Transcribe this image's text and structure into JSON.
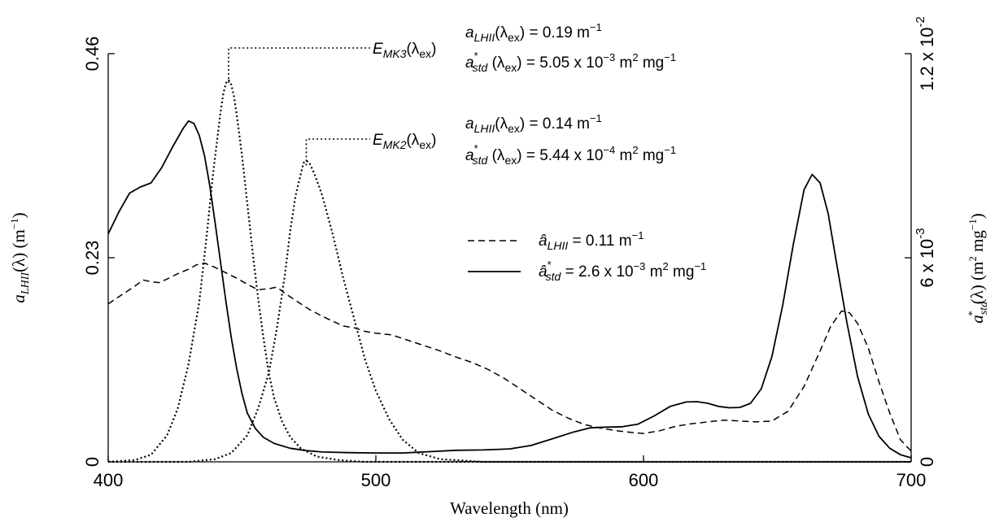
{
  "chart_data": {
    "type": "line",
    "xlabel": "Wavelength (nm)",
    "ylabel_left": "a_LHII(λ) (m⁻¹)",
    "ylabel_right": "a*_std(λ) (m² mg⁻¹)",
    "xlim": [
      400,
      700
    ],
    "ylim_left": [
      0,
      0.46
    ],
    "ylim_right": [
      0,
      0.012
    ],
    "x_ticks": [
      400,
      500,
      600,
      700
    ],
    "x_tick_labels": [
      "400",
      "500",
      "600",
      "700"
    ],
    "y_left_ticks": [
      0,
      0.23,
      0.46
    ],
    "y_left_tick_labels": [
      "0",
      "0.23",
      "0.46"
    ],
    "y_right_ticks": [
      0,
      0.006,
      0.012
    ],
    "y_right_tick_labels": [
      "0",
      "6 x 10",
      "1.2 x 10"
    ],
    "y_right_tick_exponents": [
      "",
      "-3",
      "-2"
    ],
    "grid": false,
    "series": [
      {
        "name": "â_LHII = 0.11 m⁻¹",
        "axis": "left",
        "style": "dashed",
        "points": [
          [
            400,
            0.178
          ],
          [
            405,
            0.188
          ],
          [
            410,
            0.198
          ],
          [
            413,
            0.205
          ],
          [
            416,
            0.203
          ],
          [
            419,
            0.202
          ],
          [
            422,
            0.206
          ],
          [
            426,
            0.212
          ],
          [
            430,
            0.217
          ],
          [
            433,
            0.222
          ],
          [
            436,
            0.224
          ],
          [
            440,
            0.219
          ],
          [
            444,
            0.213
          ],
          [
            448,
            0.207
          ],
          [
            452,
            0.2
          ],
          [
            456,
            0.194
          ],
          [
            460,
            0.195
          ],
          [
            463,
            0.197
          ],
          [
            466,
            0.19
          ],
          [
            470,
            0.182
          ],
          [
            475,
            0.172
          ],
          [
            480,
            0.164
          ],
          [
            485,
            0.157
          ],
          [
            488,
            0.153
          ],
          [
            492,
            0.151
          ],
          [
            496,
            0.147
          ],
          [
            500,
            0.145
          ],
          [
            506,
            0.143
          ],
          [
            512,
            0.137
          ],
          [
            518,
            0.131
          ],
          [
            524,
            0.125
          ],
          [
            530,
            0.118
          ],
          [
            536,
            0.112
          ],
          [
            542,
            0.104
          ],
          [
            548,
            0.094
          ],
          [
            554,
            0.082
          ],
          [
            560,
            0.07
          ],
          [
            566,
            0.058
          ],
          [
            572,
            0.049
          ],
          [
            578,
            0.042
          ],
          [
            584,
            0.038
          ],
          [
            590,
            0.035
          ],
          [
            596,
            0.033
          ],
          [
            600,
            0.032
          ],
          [
            606,
            0.035
          ],
          [
            612,
            0.04
          ],
          [
            618,
            0.043
          ],
          [
            624,
            0.045
          ],
          [
            630,
            0.047
          ],
          [
            636,
            0.046
          ],
          [
            642,
            0.045
          ],
          [
            648,
            0.046
          ],
          [
            654,
            0.057
          ],
          [
            660,
            0.085
          ],
          [
            666,
            0.125
          ],
          [
            670,
            0.153
          ],
          [
            674,
            0.17
          ],
          [
            677,
            0.168
          ],
          [
            680,
            0.156
          ],
          [
            684,
            0.128
          ],
          [
            688,
            0.09
          ],
          [
            692,
            0.055
          ],
          [
            696,
            0.025
          ],
          [
            700,
            0.012
          ]
        ]
      },
      {
        "name": "â*_std = 2.6 x 10⁻³ m² mg⁻¹",
        "axis": "right",
        "style": "solid",
        "points": [
          [
            400,
            0.0067
          ],
          [
            404,
            0.00735
          ],
          [
            408,
            0.0079
          ],
          [
            412,
            0.00808
          ],
          [
            416,
            0.0082
          ],
          [
            420,
            0.00865
          ],
          [
            424,
            0.00925
          ],
          [
            428,
            0.0098
          ],
          [
            430,
            0.01002
          ],
          [
            432,
            0.00995
          ],
          [
            434,
            0.0096
          ],
          [
            436,
            0.009
          ],
          [
            438,
            0.0081
          ],
          [
            440,
            0.007
          ],
          [
            442,
            0.00585
          ],
          [
            444,
            0.0047
          ],
          [
            446,
            0.00365
          ],
          [
            448,
            0.00275
          ],
          [
            450,
            0.002
          ],
          [
            452,
            0.00143
          ],
          [
            455,
            0.00098
          ],
          [
            458,
            0.00072
          ],
          [
            462,
            0.00054
          ],
          [
            468,
            0.0004
          ],
          [
            474,
            0.00033
          ],
          [
            480,
            0.00029
          ],
          [
            490,
            0.00027
          ],
          [
            500,
            0.00026
          ],
          [
            510,
            0.00026
          ],
          [
            520,
            0.0003
          ],
          [
            530,
            0.00034
          ],
          [
            540,
            0.00035
          ],
          [
            550,
            0.00038
          ],
          [
            558,
            0.00048
          ],
          [
            566,
            0.00068
          ],
          [
            574,
            0.00088
          ],
          [
            580,
            0.001
          ],
          [
            586,
            0.00102
          ],
          [
            592,
            0.00103
          ],
          [
            598,
            0.00111
          ],
          [
            604,
            0.00135
          ],
          [
            610,
            0.00163
          ],
          [
            616,
            0.00176
          ],
          [
            620,
            0.00177
          ],
          [
            624,
            0.00172
          ],
          [
            628,
            0.00163
          ],
          [
            632,
            0.00159
          ],
          [
            636,
            0.0016
          ],
          [
            640,
            0.00172
          ],
          [
            644,
            0.00215
          ],
          [
            648,
            0.0031
          ],
          [
            652,
            0.0046
          ],
          [
            656,
            0.0064
          ],
          [
            660,
            0.008
          ],
          [
            663,
            0.00845
          ],
          [
            666,
            0.0082
          ],
          [
            669,
            0.0073
          ],
          [
            672,
            0.0059
          ],
          [
            676,
            0.0041
          ],
          [
            680,
            0.0025
          ],
          [
            684,
            0.0014
          ],
          [
            688,
            0.00075
          ],
          [
            692,
            0.0004
          ],
          [
            696,
            0.00021
          ],
          [
            700,
            0.00012
          ]
        ]
      },
      {
        "name": "E_MK3(λex)",
        "axis": "left",
        "style": "dotted",
        "points": [
          [
            400,
            0.0
          ],
          [
            410,
            0.002
          ],
          [
            416,
            0.008
          ],
          [
            422,
            0.03
          ],
          [
            426,
            0.06
          ],
          [
            430,
            0.11
          ],
          [
            434,
            0.18
          ],
          [
            437,
            0.26
          ],
          [
            439,
            0.32
          ],
          [
            441,
            0.37
          ],
          [
            442,
            0.395
          ],
          [
            443,
            0.415
          ],
          [
            444,
            0.427
          ],
          [
            445,
            0.43
          ],
          [
            446,
            0.425
          ],
          [
            447,
            0.412
          ],
          [
            448,
            0.392
          ],
          [
            450,
            0.345
          ],
          [
            452,
            0.29
          ],
          [
            454,
            0.235
          ],
          [
            456,
            0.185
          ],
          [
            458,
            0.14
          ],
          [
            460,
            0.1
          ],
          [
            462,
            0.072
          ],
          [
            465,
            0.045
          ],
          [
            468,
            0.028
          ],
          [
            472,
            0.015
          ],
          [
            478,
            0.006
          ],
          [
            486,
            0.002
          ],
          [
            496,
            0.0
          ],
          [
            700,
            0.0
          ]
        ]
      },
      {
        "name": "E_MK2(λex)",
        "axis": "left",
        "style": "dotted",
        "points": [
          [
            400,
            0.0
          ],
          [
            430,
            0.0
          ],
          [
            440,
            0.003
          ],
          [
            446,
            0.01
          ],
          [
            452,
            0.03
          ],
          [
            456,
            0.06
          ],
          [
            460,
            0.1
          ],
          [
            463,
            0.15
          ],
          [
            466,
            0.21
          ],
          [
            468,
            0.26
          ],
          [
            470,
            0.3
          ],
          [
            472,
            0.325
          ],
          [
            473,
            0.337
          ],
          [
            474,
            0.339
          ],
          [
            475,
            0.338
          ],
          [
            477,
            0.325
          ],
          [
            480,
            0.3
          ],
          [
            484,
            0.255
          ],
          [
            488,
            0.205
          ],
          [
            492,
            0.16
          ],
          [
            496,
            0.115
          ],
          [
            500,
            0.08
          ],
          [
            505,
            0.048
          ],
          [
            510,
            0.025
          ],
          [
            516,
            0.01
          ],
          [
            524,
            0.003
          ],
          [
            540,
            0.0
          ],
          [
            700,
            0.0
          ]
        ]
      }
    ],
    "annotations": [
      {
        "name": "mk3",
        "label": "E",
        "label_sub": "MK3",
        "label_tail": "(λ",
        "label_tail_sub": "ex",
        "label_end": ")",
        "peak_x": 445,
        "peak_y": 0.44,
        "line1": {
          "var": "a",
          "var_sub": "LHII",
          "arg": "(λ",
          "arg_sub": "ex",
          "arg_end": ")",
          "eq": " = 0.19 m",
          "sup": "−1"
        },
        "line2": {
          "var": "a",
          "var_sup": "*",
          "var_sub": "std",
          "arg": " (λ",
          "arg_sub": "ex",
          "arg_end": ")",
          "eq": " = 5.05 x 10",
          "sup": "−3",
          "unit": " m",
          "unit_sup": "2",
          "unit_tail": " mg",
          "unit_tail_sup": "−1"
        }
      },
      {
        "name": "mk2",
        "label": "E",
        "label_sub": "MK2",
        "label_tail": "(λ",
        "label_tail_sub": "ex",
        "label_end": ")",
        "peak_x": 474,
        "peak_y": 0.347,
        "line1": {
          "var": "a",
          "var_sub": "LHII",
          "arg": "(λ",
          "arg_sub": "ex",
          "arg_end": ")",
          "eq": " = 0.14 m",
          "sup": "−1"
        },
        "line2": {
          "var": "a",
          "var_sup": "*",
          "var_sub": "std",
          "arg": " (λ",
          "arg_sub": "ex",
          "arg_end": ")",
          "eq": " = 5.44 x 10",
          "sup": "−4",
          "unit": " m",
          "unit_sup": "2",
          "unit_tail": " mg",
          "unit_tail_sup": "−1"
        }
      }
    ],
    "legend": [
      {
        "style": "dashed",
        "var": "â",
        "var_sub": "LHII",
        "eq": " = 0.11 m",
        "sup": "−1"
      },
      {
        "style": "solid",
        "var": "â",
        "var_sup": "*",
        "var_sub": "std",
        "eq": " = 2.6 x 10",
        "sup": "−3",
        "unit": " m",
        "unit_sup": "2",
        "unit_tail": " mg",
        "unit_tail_sup": "−1"
      }
    ],
    "legend_position": "center-right"
  }
}
